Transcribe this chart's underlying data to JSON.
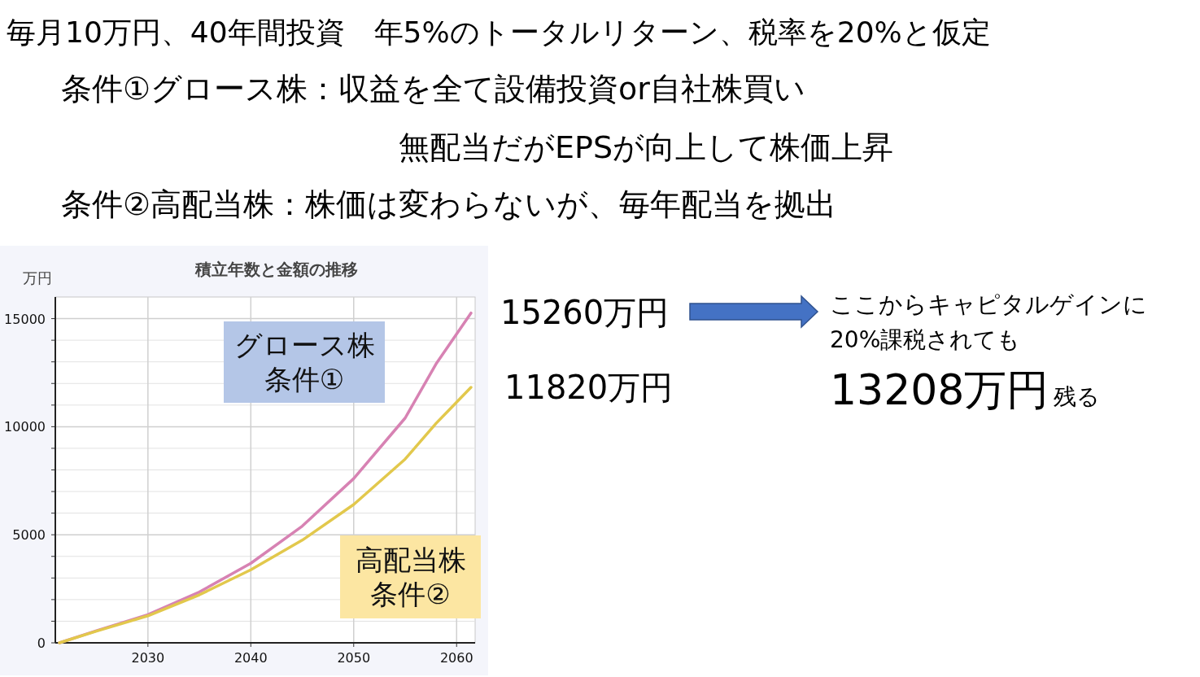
{
  "chart_data": {
    "type": "line",
    "title": "積立年数と金額の推移",
    "ylabel": "万円",
    "x": [
      2021.4,
      2025,
      2030,
      2035,
      2040,
      2045,
      2050,
      2055,
      2058,
      2061.4
    ],
    "series": [
      {
        "name": "グロース株条件①",
        "color": "#d782b3",
        "values": [
          0,
          560,
          1300,
          2350,
          3680,
          5400,
          7600,
          10400,
          12900,
          15260
        ]
      },
      {
        "name": "高配当株条件②",
        "color": "#e2c84c",
        "values": [
          0,
          540,
          1250,
          2220,
          3380,
          4750,
          6400,
          8500,
          10150,
          11820
        ]
      }
    ],
    "xlim": [
      2021,
      2061.8
    ],
    "xticks": [
      2030,
      2040,
      2050,
      2060
    ],
    "ylim": [
      0,
      16000
    ],
    "yticks": [
      0,
      {
        "value": 1000,
        "label": null
      },
      {
        "value": 2000,
        "label": null
      },
      {
        "value": 3000,
        "label": null
      },
      {
        "value": 4000,
        "label": null
      },
      5000,
      {
        "value": 6000,
        "label": null
      },
      {
        "value": 7000,
        "label": null
      },
      {
        "value": 8000,
        "label": null
      },
      {
        "value": 9000,
        "label": null
      },
      10000,
      {
        "value": 11000,
        "label": null
      },
      {
        "value": 12000,
        "label": null
      },
      {
        "value": 13000,
        "label": null
      },
      {
        "value": 14000,
        "label": null
      },
      15000
    ],
    "grid": true,
    "marker": "none",
    "line_style": "solid",
    "annotations": [
      "毎月10万円、40年間投資　年5%のトータルリターン、税率を20%と仮定",
      "条件①グロース株：収益を全て設備投資or自社株買い",
      "無配当だがEPSが向上して株価上昇",
      "条件②高配当株：株価は変わらないが、毎年配当を拠出",
      "15260万円",
      "11820万円",
      "ここからキャピタルゲインに",
      "20%課税されても",
      "13208万円",
      "残る"
    ]
  }
}
